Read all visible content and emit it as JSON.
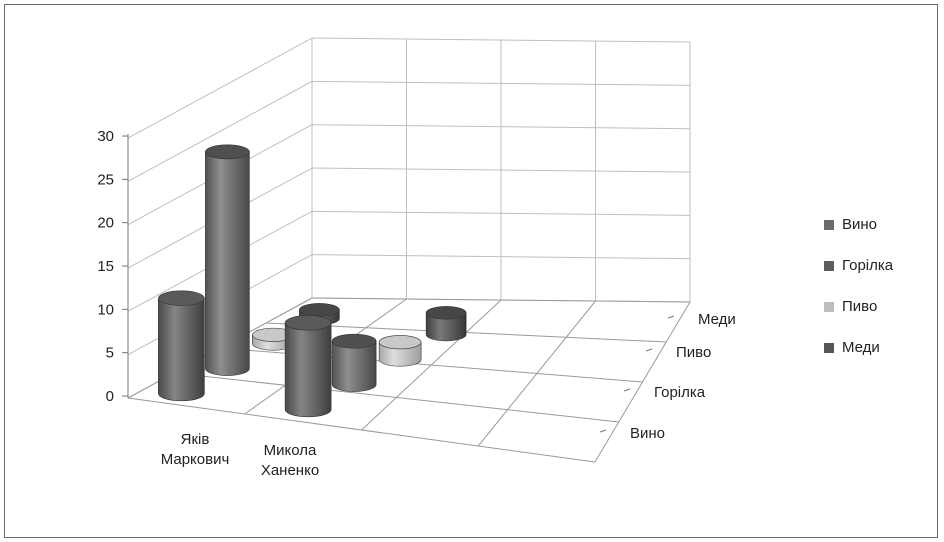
{
  "chart_data": {
    "type": "bar",
    "title": "",
    "xlabel": "",
    "ylabel": "",
    "categories": [
      "Яків Маркович",
      "Микола Ханенко"
    ],
    "series": [
      {
        "name": "Вино",
        "values": [
          11,
          10
        ],
        "color": "#6b6b6b"
      },
      {
        "name": "Горілка",
        "values": [
          25,
          5
        ],
        "color": "#5d5d5d"
      },
      {
        "name": "Пиво",
        "values": [
          1,
          2
        ],
        "color": "#bdbdbd"
      },
      {
        "name": "Меди",
        "values": [
          1,
          2.5
        ],
        "color": "#555555"
      }
    ],
    "ylim": [
      0,
      30
    ],
    "yticks": [
      "0",
      "5",
      "10",
      "15",
      "20",
      "25",
      "30"
    ],
    "depth_labels": [
      "Вино",
      "Горілка",
      "Пиво",
      "Меди"
    ],
    "category_labels": [
      [
        "Яків",
        "Маркович"
      ],
      [
        "Микола",
        "Ханенко"
      ]
    ],
    "legend_position": "right",
    "grid": true
  }
}
